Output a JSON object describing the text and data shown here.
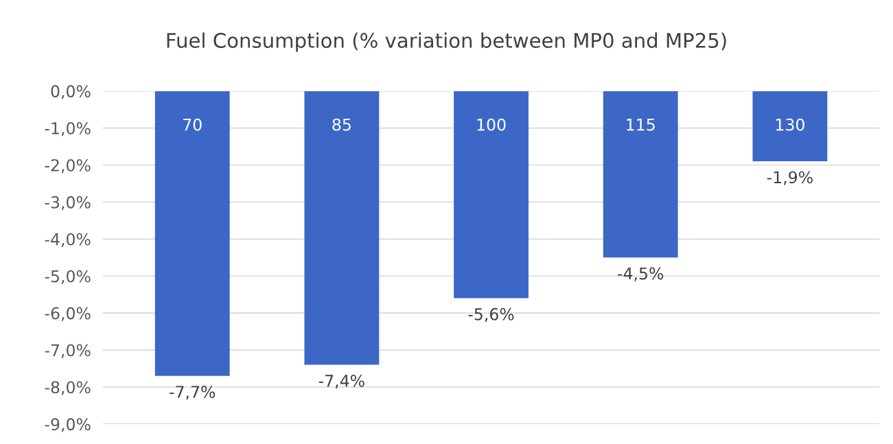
{
  "chart_data": {
    "type": "bar",
    "title": "Fuel Consumption (% variation between MP0 and MP25)",
    "categories": [
      "70",
      "85",
      "100",
      "115",
      "130"
    ],
    "values": [
      -7.7,
      -7.4,
      -5.6,
      -4.5,
      -1.9
    ],
    "value_labels": [
      "-7,7%",
      "-7,4%",
      "-5,6%",
      "-4,5%",
      "-1,9%"
    ],
    "color": "#3d67c6",
    "ylim": [
      -9,
      0
    ],
    "yticks": [
      {
        "value": 0,
        "label": "0,0%"
      },
      {
        "value": -1,
        "label": "-1,0%"
      },
      {
        "value": -2,
        "label": "-2,0%"
      },
      {
        "value": -3,
        "label": "-3,0%"
      },
      {
        "value": -4,
        "label": "-4,0%"
      },
      {
        "value": -5,
        "label": "-5,0%"
      },
      {
        "value": -6,
        "label": "-6,0%"
      },
      {
        "value": -7,
        "label": "-7,0%"
      },
      {
        "value": -8,
        "label": "-8,0%"
      },
      {
        "value": -9,
        "label": "-9,0%"
      }
    ],
    "grid": "y",
    "legend": false
  }
}
